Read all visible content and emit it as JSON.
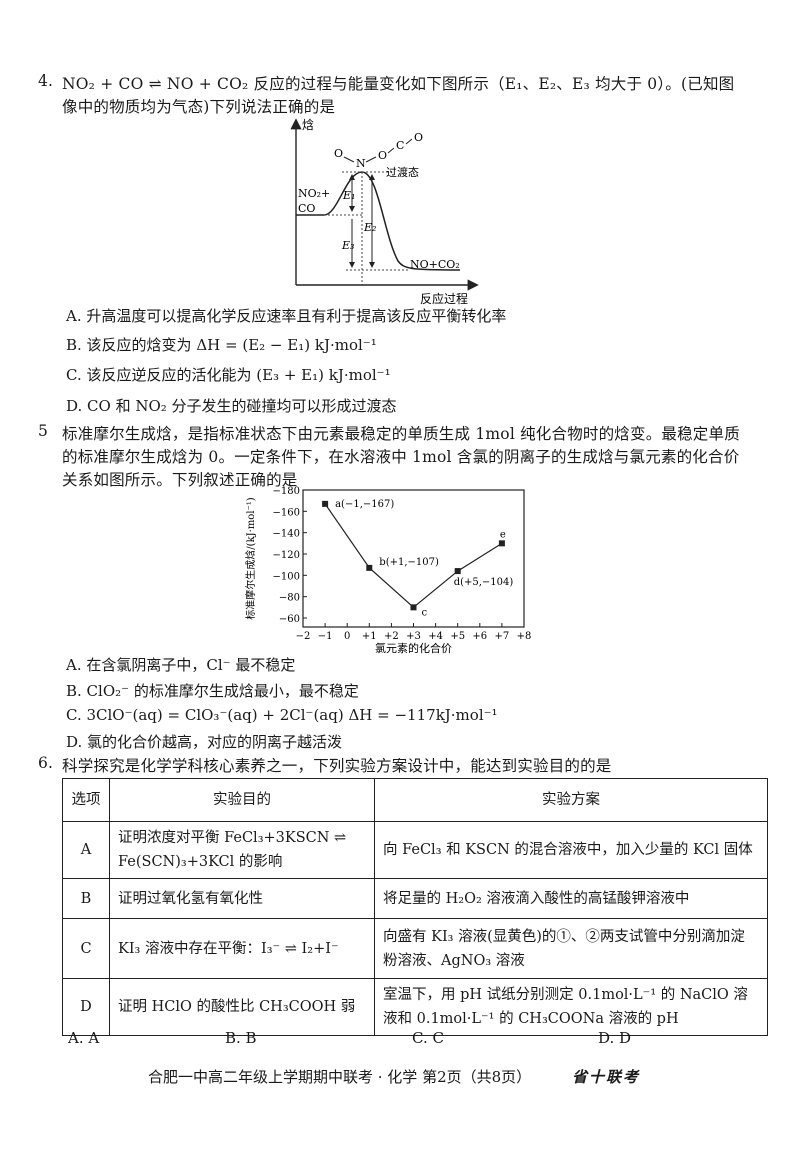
{
  "q4": {
    "number": "4.",
    "line1": "NO₂ + CO ⇌ NO + CO₂ 反应的过程与能量变化如下图所示（E₁、E₂、E₃ 均大于 0）。(已知图",
    "line2": "像中的物质均为气态)下列说法正确的是",
    "diagram": {
      "y_axis_label": "焓",
      "x_axis_label": "反应过程",
      "reactants_line1": "NO₂+",
      "reactants_line2": "CO",
      "products": "NO+CO₂",
      "transition_state": "过渡态",
      "molecule_atoms": [
        "O",
        "N",
        "O",
        "C",
        "O"
      ],
      "e1": "E₁",
      "e2": "E₂",
      "e3": "E₃"
    },
    "options": [
      "A.  升高温度可以提高化学反应速率且有利于提高该反应平衡转化率",
      "B.  该反应的焓变为 ΔH = (E₂ − E₁)  kJ·mol⁻¹",
      "C.  该反应逆反应的活化能为 (E₃ + E₁) kJ·mol⁻¹",
      "D.  CO 和 NO₂ 分子发生的碰撞均可以形成过渡态"
    ]
  },
  "q5": {
    "number": "5",
    "line1": "标准摩尔生成焓，是指标准状态下由元素最稳定的单质生成 1mol 纯化合物时的焓变。最稳定单质",
    "line2": "的标准摩尔生成焓为 0。一定条件下，在水溶液中 1mol 含氯的阴离子的生成焓与氯元素的化合价",
    "line3": "关系如图所示。下列叙述正确的是",
    "options": [
      "A.  在含氯阴离子中，Cl⁻ 最不稳定",
      "B.  ClO₂⁻ 的标准摩尔生成焓最小，最不稳定",
      "C.  3ClO⁻(aq) = ClO₃⁻(aq) + 2Cl⁻(aq)    ΔH = −117kJ·mol⁻¹",
      "D.  氯的化合价越高，对应的阴离子越活泼"
    ]
  },
  "chart_data": {
    "type": "line",
    "title": "",
    "xlabel": "氯元素的化合价",
    "ylabel": "标准摩尔生成焓/(kJ·mol⁻¹)",
    "xlim": [
      -2,
      8
    ],
    "ylim": [
      -180,
      -60
    ],
    "y_axis_reversed": true,
    "grid": false,
    "x_ticks": [
      "−2",
      "−1",
      "0",
      "+1",
      "+2",
      "+3",
      "+4",
      "+5",
      "+6",
      "+7",
      "+8"
    ],
    "x_tick_values": [
      -2,
      -1,
      0,
      1,
      2,
      3,
      4,
      5,
      6,
      7,
      8
    ],
    "y_ticks": [
      "−180",
      "−160",
      "−140",
      "−120",
      "−100",
      "−80",
      "−60"
    ],
    "y_tick_values": [
      -180,
      -160,
      -140,
      -120,
      -100,
      -80,
      -60
    ],
    "points": [
      {
        "x": -1,
        "y": -167,
        "label": "a(−1,−167)"
      },
      {
        "x": 1,
        "y": -107,
        "label": "b(+1,−107)"
      },
      {
        "x": 3,
        "y": -70,
        "label": "c"
      },
      {
        "x": 5,
        "y": -104,
        "label": "d(+5,−104)"
      },
      {
        "x": 7,
        "y": -130,
        "label": "e"
      }
    ]
  },
  "q6": {
    "number": "6.",
    "stem": "科学探究是化学学科核心素养之一，下列实验方案设计中，能达到实验目的的是",
    "table": {
      "headers": [
        "选项",
        "实验目的",
        "实验方案"
      ],
      "rows": [
        [
          "A",
          "证明浓度对平衡 FeCl₃+3KSCN ⇌ Fe(SCN)₃+3KCl 的影响",
          "向 FeCl₃ 和 KSCN 的混合溶液中，加入少量的 KCl 固体"
        ],
        [
          "B",
          "证明过氧化氢有氧化性",
          "将足量的 H₂O₂ 溶液滴入酸性的高锰酸钾溶液中"
        ],
        [
          "C",
          "KI₃ 溶液中存在平衡：I₃⁻ ⇌ I₂+I⁻",
          "向盛有 KI₃ 溶液(显黄色)的①、②两支试管中分别滴加淀粉溶液、AgNO₃ 溶液"
        ],
        [
          "D",
          "证明 HClO 的酸性比 CH₃COOH 弱",
          "室温下，用 pH 试纸分别测定 0.1mol·L⁻¹ 的 NaClO 溶液和 0.1mol·L⁻¹ 的 CH₃COONa 溶液的 pH"
        ]
      ]
    },
    "answers": [
      "A.  A",
      "B.  B",
      "C.  C",
      "D.  D"
    ]
  },
  "footer": {
    "text": "合肥一中高二年级上学期期中联考 · 化学  第2页（共8页）",
    "stamp": "省十联考"
  }
}
